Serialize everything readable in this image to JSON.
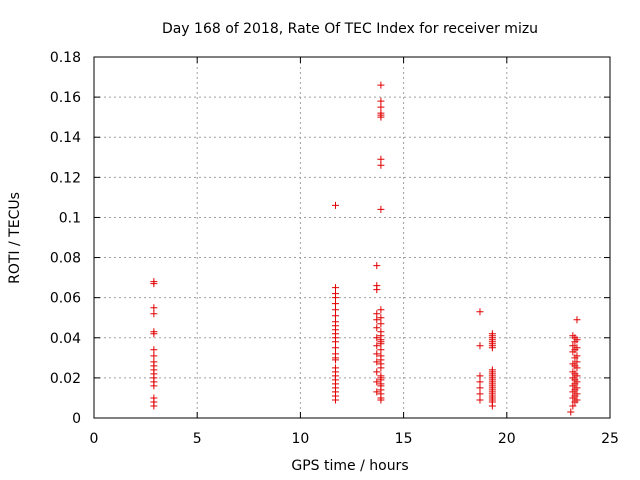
{
  "chart_data": {
    "type": "scatter",
    "title": "Day 168 of 2018, Rate Of TEC Index for receiver mizu",
    "xlabel": "GPS time / hours",
    "ylabel": "ROTI / TECUs",
    "xlim": [
      0,
      25
    ],
    "ylim": [
      0,
      0.18
    ],
    "grid": true,
    "marker": "+",
    "color": "#e00000",
    "xticks": [
      0,
      5,
      10,
      15,
      20,
      25
    ],
    "xtick_labels": [
      "0",
      "5",
      "10",
      "15",
      "20",
      "25"
    ],
    "yticks": [
      0,
      0.02,
      0.04,
      0.06,
      0.08,
      0.1,
      0.12,
      0.14,
      0.16,
      0.18
    ],
    "ytick_labels": [
      "0",
      "0.02",
      "0.04",
      "0.06",
      "0.08",
      "0.1",
      "0.12",
      "0.14",
      "0.16",
      "0.18"
    ],
    "series": [
      {
        "name": "ROTI",
        "points": [
          [
            2.9,
            0.068
          ],
          [
            2.9,
            0.067
          ],
          [
            2.9,
            0.055
          ],
          [
            2.9,
            0.052
          ],
          [
            2.9,
            0.043
          ],
          [
            2.9,
            0.042
          ],
          [
            2.9,
            0.034
          ],
          [
            2.9,
            0.031
          ],
          [
            2.9,
            0.028
          ],
          [
            2.9,
            0.026
          ],
          [
            2.9,
            0.024
          ],
          [
            2.9,
            0.022
          ],
          [
            2.9,
            0.02
          ],
          [
            2.9,
            0.018
          ],
          [
            2.9,
            0.016
          ],
          [
            2.9,
            0.01
          ],
          [
            2.9,
            0.008
          ],
          [
            2.9,
            0.006
          ],
          [
            11.7,
            0.106
          ],
          [
            11.7,
            0.065
          ],
          [
            11.7,
            0.062
          ],
          [
            11.7,
            0.06
          ],
          [
            11.7,
            0.057
          ],
          [
            11.7,
            0.054
          ],
          [
            11.7,
            0.051
          ],
          [
            11.7,
            0.048
          ],
          [
            11.7,
            0.046
          ],
          [
            11.7,
            0.044
          ],
          [
            11.7,
            0.042
          ],
          [
            11.7,
            0.04
          ],
          [
            11.7,
            0.038
          ],
          [
            11.7,
            0.035
          ],
          [
            11.7,
            0.032
          ],
          [
            11.7,
            0.03
          ],
          [
            11.7,
            0.029
          ],
          [
            11.7,
            0.025
          ],
          [
            11.7,
            0.023
          ],
          [
            11.7,
            0.021
          ],
          [
            11.7,
            0.019
          ],
          [
            11.7,
            0.017
          ],
          [
            11.7,
            0.015
          ],
          [
            11.7,
            0.013
          ],
          [
            11.7,
            0.011
          ],
          [
            11.7,
            0.009
          ],
          [
            13.9,
            0.166
          ],
          [
            13.9,
            0.158
          ],
          [
            13.9,
            0.155
          ],
          [
            13.9,
            0.152
          ],
          [
            13.9,
            0.151
          ],
          [
            13.9,
            0.15
          ],
          [
            13.9,
            0.129
          ],
          [
            13.9,
            0.126
          ],
          [
            13.9,
            0.104
          ],
          [
            13.7,
            0.076
          ],
          [
            13.7,
            0.066
          ],
          [
            13.7,
            0.064
          ],
          [
            13.9,
            0.054
          ],
          [
            13.7,
            0.052
          ],
          [
            13.9,
            0.05
          ],
          [
            13.7,
            0.049
          ],
          [
            13.9,
            0.047
          ],
          [
            13.7,
            0.045
          ],
          [
            13.9,
            0.043
          ],
          [
            13.9,
            0.041
          ],
          [
            13.7,
            0.04
          ],
          [
            13.9,
            0.039
          ],
          [
            13.9,
            0.038
          ],
          [
            13.9,
            0.037
          ],
          [
            13.7,
            0.036
          ],
          [
            13.9,
            0.034
          ],
          [
            13.7,
            0.032
          ],
          [
            13.9,
            0.031
          ],
          [
            13.9,
            0.029
          ],
          [
            13.7,
            0.028
          ],
          [
            13.9,
            0.027
          ],
          [
            13.9,
            0.025
          ],
          [
            13.7,
            0.023
          ],
          [
            13.9,
            0.021
          ],
          [
            13.9,
            0.02
          ],
          [
            13.9,
            0.019
          ],
          [
            13.7,
            0.018
          ],
          [
            13.9,
            0.017
          ],
          [
            13.9,
            0.016
          ],
          [
            13.9,
            0.014
          ],
          [
            13.7,
            0.013
          ],
          [
            13.9,
            0.012
          ],
          [
            13.9,
            0.01
          ],
          [
            13.9,
            0.009
          ],
          [
            18.7,
            0.053
          ],
          [
            18.7,
            0.036
          ],
          [
            18.7,
            0.021
          ],
          [
            18.7,
            0.018
          ],
          [
            18.7,
            0.015
          ],
          [
            18.7,
            0.012
          ],
          [
            18.7,
            0.009
          ],
          [
            19.3,
            0.042
          ],
          [
            19.3,
            0.041
          ],
          [
            19.3,
            0.04
          ],
          [
            19.3,
            0.039
          ],
          [
            19.3,
            0.038
          ],
          [
            19.3,
            0.037
          ],
          [
            19.3,
            0.036
          ],
          [
            19.3,
            0.035
          ],
          [
            19.3,
            0.024
          ],
          [
            19.3,
            0.023
          ],
          [
            19.3,
            0.022
          ],
          [
            19.3,
            0.021
          ],
          [
            19.3,
            0.02
          ],
          [
            19.3,
            0.019
          ],
          [
            19.3,
            0.018
          ],
          [
            19.3,
            0.017
          ],
          [
            19.3,
            0.016
          ],
          [
            19.3,
            0.015
          ],
          [
            19.3,
            0.014
          ],
          [
            19.3,
            0.013
          ],
          [
            19.3,
            0.012
          ],
          [
            19.3,
            0.011
          ],
          [
            19.3,
            0.01
          ],
          [
            19.3,
            0.009
          ],
          [
            19.3,
            0.008
          ],
          [
            19.3,
            0.006
          ],
          [
            23.4,
            0.049
          ],
          [
            23.2,
            0.041
          ],
          [
            23.3,
            0.04
          ],
          [
            23.4,
            0.039
          ],
          [
            23.3,
            0.038
          ],
          [
            23.2,
            0.036
          ],
          [
            23.4,
            0.035
          ],
          [
            23.3,
            0.034
          ],
          [
            23.2,
            0.033
          ],
          [
            23.4,
            0.031
          ],
          [
            23.3,
            0.03
          ],
          [
            23.4,
            0.028
          ],
          [
            23.2,
            0.027
          ],
          [
            23.3,
            0.026
          ],
          [
            23.4,
            0.025
          ],
          [
            23.2,
            0.023
          ],
          [
            23.3,
            0.022
          ],
          [
            23.4,
            0.021
          ],
          [
            23.2,
            0.02
          ],
          [
            23.3,
            0.019
          ],
          [
            23.4,
            0.018
          ],
          [
            23.3,
            0.017
          ],
          [
            23.2,
            0.016
          ],
          [
            23.4,
            0.015
          ],
          [
            23.3,
            0.014
          ],
          [
            23.2,
            0.013
          ],
          [
            23.4,
            0.012
          ],
          [
            23.3,
            0.011
          ],
          [
            23.2,
            0.01
          ],
          [
            23.4,
            0.009
          ],
          [
            23.3,
            0.008
          ],
          [
            23.2,
            0.006
          ],
          [
            23.1,
            0.003
          ]
        ]
      }
    ]
  }
}
